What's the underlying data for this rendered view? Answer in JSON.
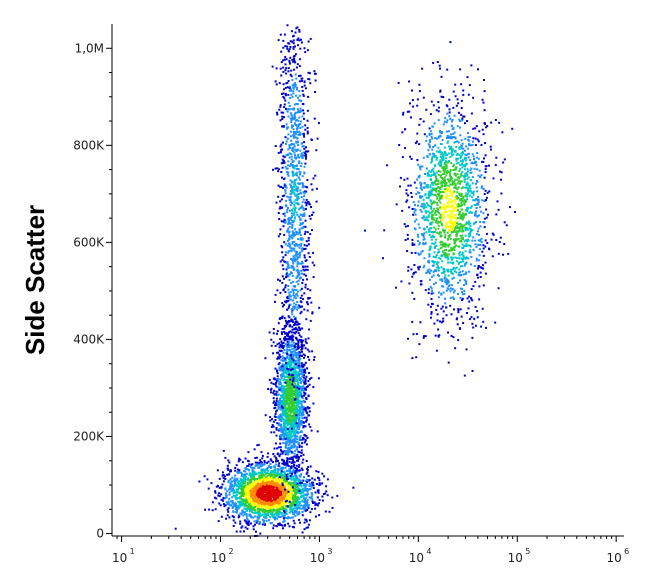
{
  "chart_data": {
    "type": "scatter",
    "style": "pseudocolor density dot plot",
    "title": "",
    "xlabel": "",
    "ylabel": "Side Scatter",
    "x_scale": "log",
    "xlim": [
      8,
      1200000
    ],
    "ylim": [
      -5000,
      1050000
    ],
    "x_ticks": [
      {
        "base": "10",
        "exp": "1",
        "value": 10
      },
      {
        "base": "10",
        "exp": "2",
        "value": 100
      },
      {
        "base": "10",
        "exp": "3",
        "value": 1000
      },
      {
        "base": "10",
        "exp": "4",
        "value": 10000
      },
      {
        "base": "10",
        "exp": "5",
        "value": 100000
      },
      {
        "base": "10",
        "exp": "6",
        "value": 1000000
      }
    ],
    "y_ticks": [
      {
        "label": "0",
        "value": 0
      },
      {
        "label": "200K",
        "value": 200000
      },
      {
        "label": "400K",
        "value": 400000
      },
      {
        "label": "600K",
        "value": 600000
      },
      {
        "label": "800K",
        "value": 800000
      },
      {
        "label": "1,0M",
        "value": 1000000
      }
    ],
    "grid": false,
    "legend": "none",
    "colormap": [
      "#0000cc",
      "#1e90ff",
      "#00c8c8",
      "#32cd32",
      "#ffff00",
      "#ff8c00",
      "#e00000"
    ],
    "populations": [
      {
        "x_center": 300,
        "y_center": 85000,
        "x_spread_decades": 0.22,
        "y_spread": 30000,
        "peak_density": 1.0
      },
      {
        "x_center": 500,
        "y_center": 280000,
        "x_spread_decades": 0.08,
        "y_spread": 70000,
        "peak_density": 0.55
      },
      {
        "x_center": 550,
        "y_center": 700000,
        "x_spread_decades": 0.08,
        "y_spread": 200000,
        "peak_density": 0.3
      },
      {
        "x_center": 20000,
        "y_center": 670000,
        "x_spread_decades": 0.2,
        "y_spread": 110000,
        "peak_density": 0.62
      }
    ]
  }
}
